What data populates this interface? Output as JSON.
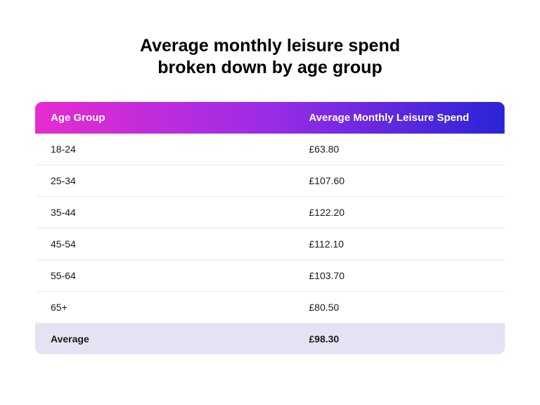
{
  "title": {
    "line1": "Average monthly leisure spend",
    "line2": "broken down by age group",
    "fontsize": 25,
    "color": "#000000"
  },
  "table": {
    "header_gradient": {
      "from": "#e62ccf",
      "mid": "#9a2ce6",
      "to": "#2a24d6"
    },
    "header_text_color": "#ffffff",
    "header_fontsize": 15,
    "body_fontsize": 14,
    "body_text_color": "#1a1a1a",
    "row_border_color": "#ececf2",
    "row_bg": "#ffffff",
    "avg_row_bg": "#e4e3f4",
    "border_radius": 10,
    "col1_width_pct": 55,
    "columns": [
      "Age Group",
      "Average Monthly Leisure Spend"
    ],
    "rows": [
      [
        "18-24",
        "£63.80"
      ],
      [
        "25-34",
        "£107.60"
      ],
      [
        "35-44",
        "£122.20"
      ],
      [
        "45-54",
        "£112.10"
      ],
      [
        "55-64",
        "£103.70"
      ],
      [
        "65+",
        "£80.50"
      ]
    ],
    "average_row": [
      "Average",
      "£98.30"
    ]
  }
}
